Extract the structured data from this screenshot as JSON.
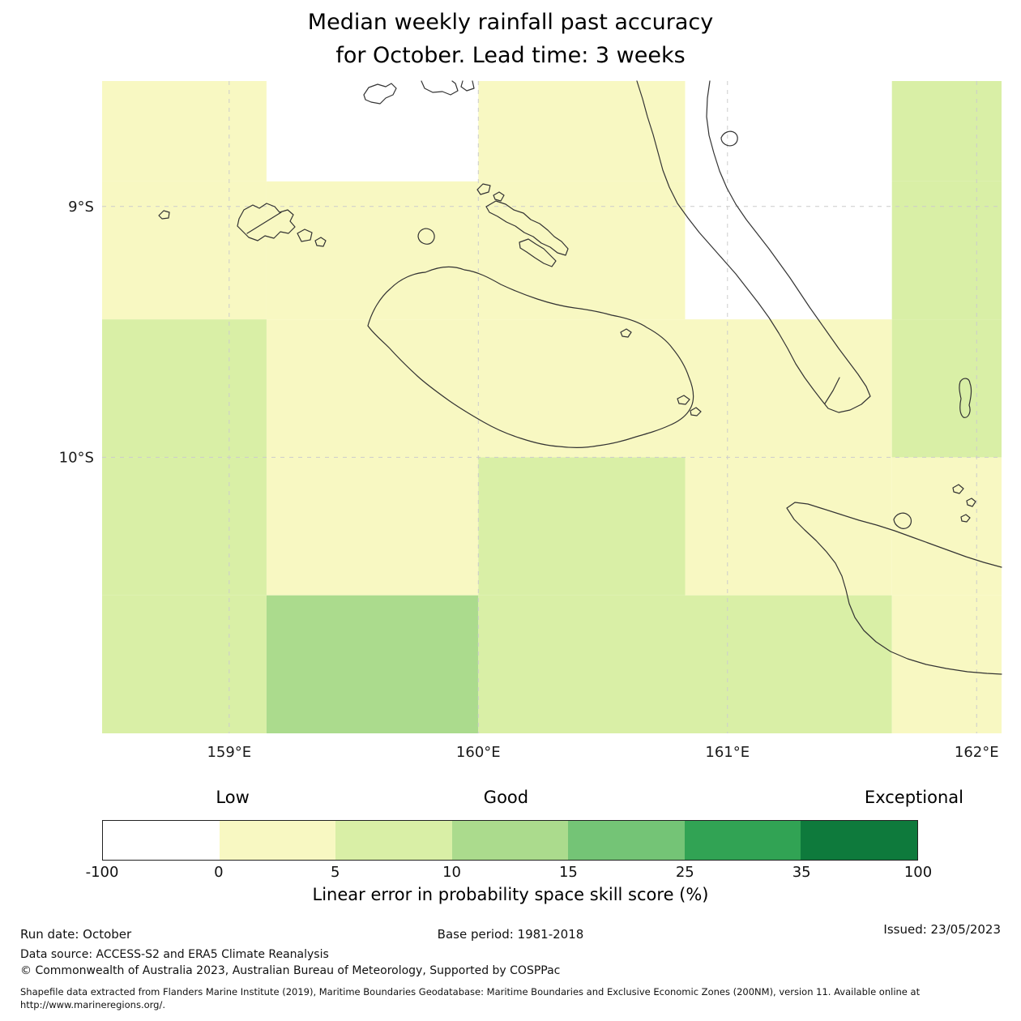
{
  "title": {
    "line1": "Median weekly rainfall past accuracy",
    "line2": "for October. Lead time: 3 weeks"
  },
  "chart_data": {
    "type": "heatmap",
    "title": "Median weekly rainfall past accuracy for October. Lead time: 3 weeks",
    "x_range": [
      158.49,
      162.1
    ],
    "y_range_deg_south": [
      8.5,
      11.1
    ],
    "x_ticks": [
      {
        "value": 159,
        "label": "159°E"
      },
      {
        "value": 160,
        "label": "160°E"
      },
      {
        "value": 161,
        "label": "161°E"
      },
      {
        "value": 162,
        "label": "162°E"
      }
    ],
    "y_ticks": [
      {
        "value": 9,
        "label": "9°S"
      },
      {
        "value": 10,
        "label": "10°S"
      }
    ],
    "grid_color": "#cccccc",
    "coastline_color": "#333333",
    "bins": {
      "below_0": {
        "range": [
          -100,
          0
        ],
        "color": "#ffffff"
      },
      "0_5": {
        "range": [
          0,
          5
        ],
        "color": "#f8f8c2"
      },
      "5_10": {
        "range": [
          5,
          10
        ],
        "color": "#d9efa6"
      },
      "10_15": {
        "range": [
          10,
          15
        ],
        "color": "#abdb8d"
      }
    },
    "col_bounds_lon": [
      158.49,
      159.15,
      160.0,
      160.83,
      161.66,
      162.1
    ],
    "row_bounds_deg_south": [
      8.5,
      8.9,
      9.45,
      10.0,
      10.55,
      11.1
    ],
    "grid_bins": [
      [
        "0_5",
        "below_0",
        "0_5",
        "below_0",
        "5_10"
      ],
      [
        "0_5",
        "0_5",
        "0_5",
        "below_0",
        "5_10"
      ],
      [
        "5_10",
        "0_5",
        "0_5",
        "0_5",
        "5_10"
      ],
      [
        "5_10",
        "0_5",
        "5_10",
        "0_5",
        "0_5"
      ],
      [
        "5_10",
        "10_15",
        "5_10",
        "5_10",
        "0_5"
      ]
    ],
    "colorbar": {
      "position": "bottom",
      "boundaries": [
        "-100",
        "0",
        "5",
        "10",
        "15",
        "25",
        "35",
        "100"
      ],
      "colors": [
        "#ffffff",
        "#f8f8c2",
        "#d9efa6",
        "#abdb8d",
        "#74c476",
        "#31a354",
        "#0e7a3c"
      ],
      "category_labels": [
        {
          "label": "Low"
        },
        {
          "label": "Good"
        },
        {
          "label": "Exceptional"
        }
      ],
      "axis_label": "Linear error in probability space skill score (%)"
    }
  },
  "footer": {
    "run_date": "Run date: October",
    "base_period": "Base period: 1981-2018",
    "issued": "Issued: 23/05/2023",
    "data_source": "Data source: ACCESS-S2 and ERA5 Climate Reanalysis",
    "copyright": "© Commonwealth of Australia 2023, Australian Bureau of Meteorology, Supported by COSPPac",
    "shapefile_note": "Shapefile data extracted from Flanders Marine Institute (2019), Maritime Boundaries Geodatabase: Maritime Boundaries and Exclusive Economic Zones (200NM), version 11. Available online at http://www.marineregions.org/."
  }
}
